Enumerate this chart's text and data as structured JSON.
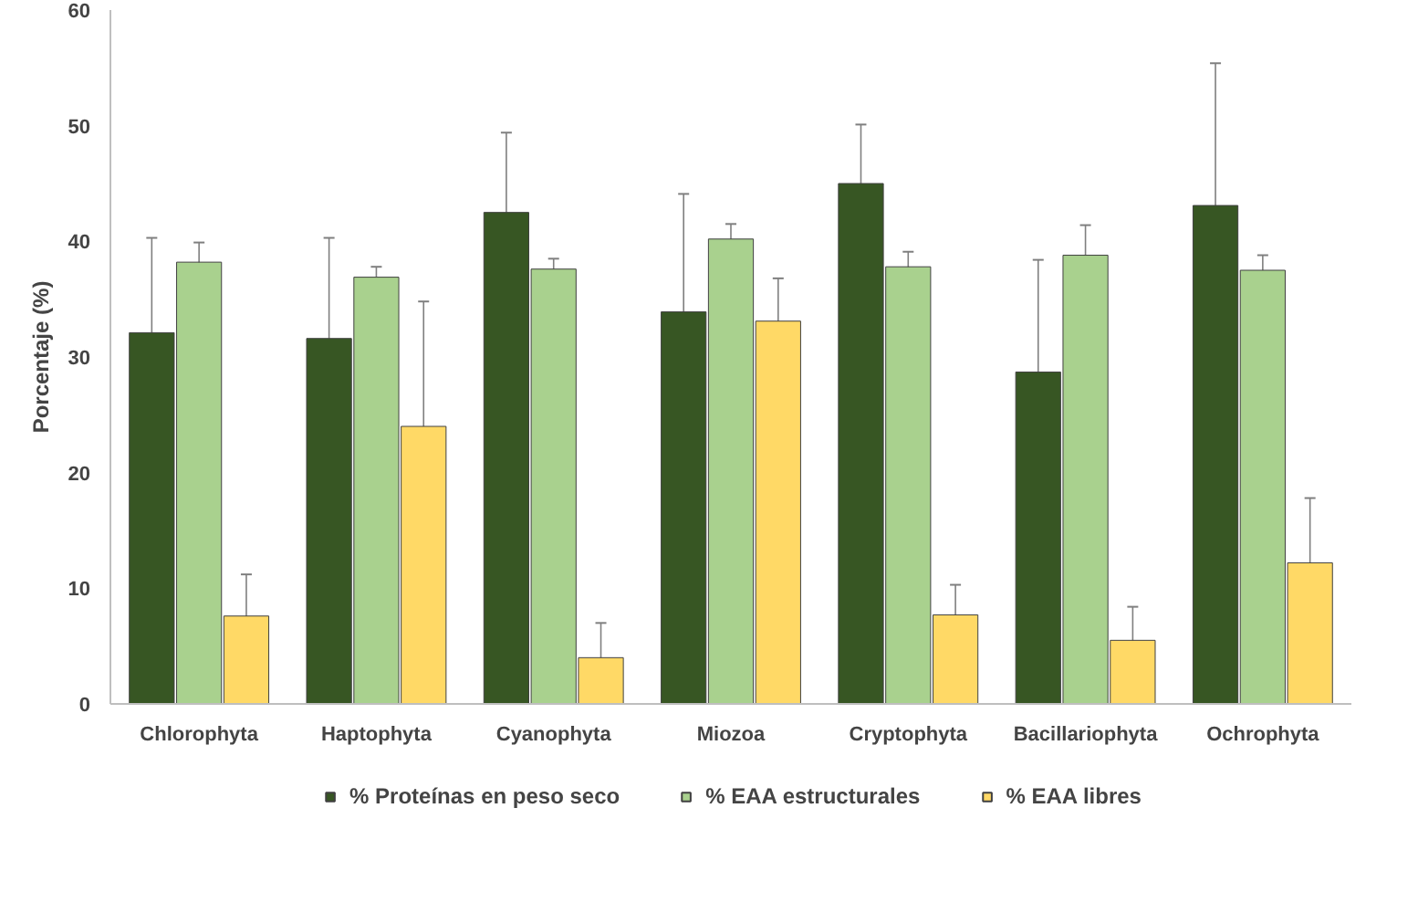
{
  "chart_data": {
    "type": "bar",
    "ylabel": "Porcentaje (%)",
    "categories": [
      "Chlorophyta",
      "Haptophyta",
      "Cyanophyta",
      "Miozoa",
      "Cryptophyta",
      "Bacillariophyta",
      "Ochrophyta"
    ],
    "series": [
      {
        "name": "% Proteínas en peso seco",
        "color": "#375623",
        "values": [
          32.1,
          31.6,
          42.5,
          33.9,
          45.0,
          28.7,
          43.1
        ],
        "errors": [
          8.2,
          8.7,
          6.9,
          10.2,
          5.1,
          9.7,
          12.3
        ]
      },
      {
        "name": "% EAA estructurales",
        "color": "#a9d18e",
        "values": [
          38.2,
          36.9,
          37.6,
          40.2,
          37.8,
          38.8,
          37.5
        ],
        "errors": [
          1.7,
          0.9,
          0.9,
          1.3,
          1.3,
          2.6,
          1.3
        ]
      },
      {
        "name": "% EAA libres",
        "color": "#ffd966",
        "values": [
          7.6,
          24.0,
          4.0,
          33.1,
          7.7,
          5.5,
          12.2
        ],
        "errors": [
          3.6,
          10.8,
          3.0,
          3.7,
          2.6,
          2.9,
          5.6
        ]
      }
    ],
    "ylim": [
      0,
      60
    ],
    "yticks": [
      0,
      10,
      20,
      30,
      40,
      50,
      60
    ],
    "grid": false,
    "legend": "bottom"
  }
}
